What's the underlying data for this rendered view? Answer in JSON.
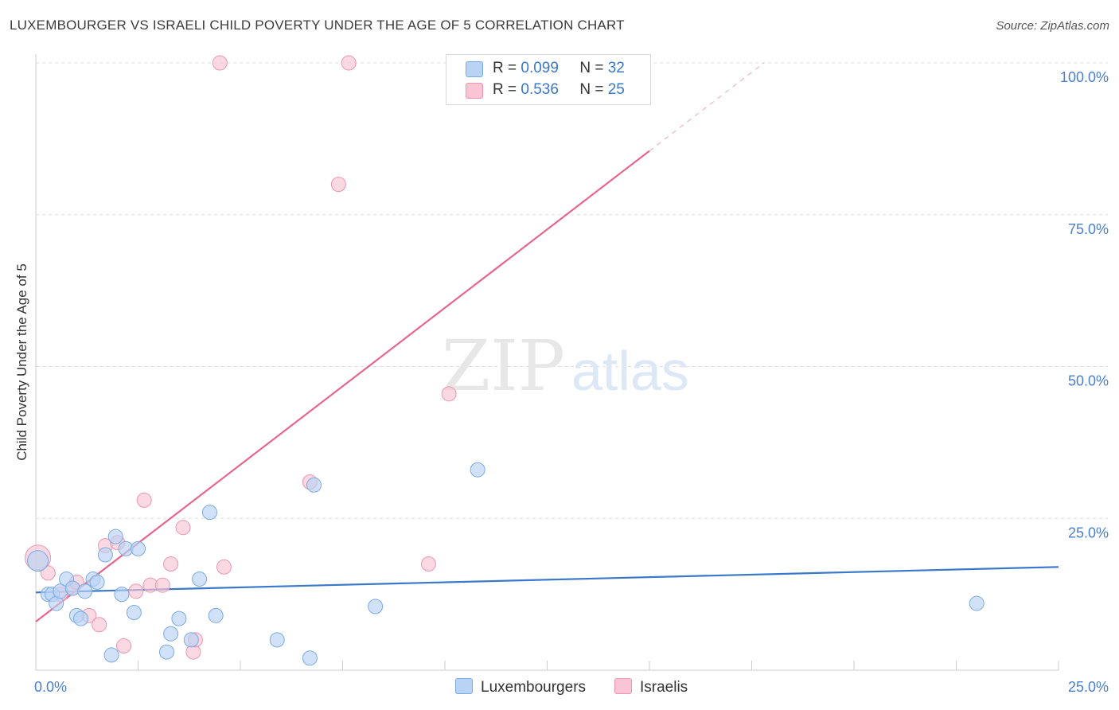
{
  "title": "LUXEMBOURGER VS ISRAELI CHILD POVERTY UNDER THE AGE OF 5 CORRELATION CHART",
  "source": "Source: ZipAtlas.com",
  "watermark": {
    "zip": "ZIP",
    "atlas": "atlas"
  },
  "legend": {
    "r_label": "R =",
    "n_label": "N =",
    "series": [
      {
        "name": "Luxembourgers",
        "r": "0.099",
        "n": "32",
        "fill": "#b8d3f4",
        "stroke": "#7aaae6"
      },
      {
        "name": "Israelis",
        "r": "0.536",
        "n": "25",
        "fill": "#f9c4d4",
        "stroke": "#ee96b2"
      }
    ]
  },
  "colors": {
    "blue_line": "#3a78c9",
    "pink_line": "#e5678d",
    "axis_text": "#4a7fcf",
    "grid": "#dddddd"
  },
  "chart_data": {
    "type": "scatter",
    "title": "LUXEMBOURGER VS ISRAELI CHILD POVERTY UNDER THE AGE OF 5 CORRELATION CHART",
    "xlabel": "",
    "ylabel": "Child Poverty Under the Age of 5",
    "xlim": [
      0,
      25
    ],
    "ylim": [
      0,
      100
    ],
    "x_tick_labels": [
      {
        "value": 0,
        "label": "0.0%"
      },
      {
        "value": 25,
        "label": "25.0%"
      }
    ],
    "y_tick_labels": [
      {
        "value": 100,
        "label": "100.0%"
      },
      {
        "value": 75,
        "label": "75.0%"
      },
      {
        "value": 50,
        "label": "50.0%"
      },
      {
        "value": 25,
        "label": "25.0%"
      }
    ],
    "series": [
      {
        "name": "Luxembourgers",
        "points": [
          [
            0.05,
            18.0,
            13
          ],
          [
            0.3,
            12.5,
            9
          ],
          [
            0.4,
            12.5,
            9
          ],
          [
            0.5,
            11.0,
            9
          ],
          [
            0.6,
            13.0,
            9
          ],
          [
            0.75,
            15.0,
            9
          ],
          [
            0.9,
            13.5,
            9
          ],
          [
            1.0,
            9.0,
            9
          ],
          [
            1.1,
            8.5,
            9
          ],
          [
            1.2,
            13.0,
            9
          ],
          [
            1.4,
            15.0,
            9
          ],
          [
            1.5,
            14.5,
            9
          ],
          [
            1.7,
            19.0,
            9
          ],
          [
            1.85,
            2.5,
            9
          ],
          [
            1.95,
            22.0,
            9
          ],
          [
            2.1,
            12.5,
            9
          ],
          [
            2.2,
            20.0,
            9
          ],
          [
            2.4,
            9.5,
            9
          ],
          [
            2.5,
            20.0,
            9
          ],
          [
            3.2,
            3.0,
            9
          ],
          [
            3.3,
            6.0,
            9
          ],
          [
            3.5,
            8.5,
            9
          ],
          [
            3.8,
            5.0,
            9
          ],
          [
            4.0,
            15.0,
            9
          ],
          [
            4.25,
            26.0,
            9
          ],
          [
            4.4,
            9.0,
            9
          ],
          [
            5.9,
            5.0,
            9
          ],
          [
            6.7,
            2.0,
            9
          ],
          [
            6.8,
            30.5,
            9
          ],
          [
            8.3,
            10.5,
            9
          ],
          [
            10.8,
            33.0,
            9
          ],
          [
            23.0,
            11.0,
            9
          ]
        ]
      },
      {
        "name": "Israelis",
        "points": [
          [
            0.05,
            18.5,
            16
          ],
          [
            0.3,
            16.0,
            9
          ],
          [
            0.6,
            12.5,
            9
          ],
          [
            0.9,
            13.5,
            9
          ],
          [
            1.0,
            14.5,
            9
          ],
          [
            1.3,
            9.0,
            9
          ],
          [
            1.55,
            7.5,
            9
          ],
          [
            1.7,
            20.5,
            9
          ],
          [
            2.0,
            21.0,
            9
          ],
          [
            2.15,
            4.0,
            9
          ],
          [
            2.45,
            13.0,
            9
          ],
          [
            2.65,
            28.0,
            9
          ],
          [
            2.8,
            14.0,
            9
          ],
          [
            3.1,
            14.0,
            9
          ],
          [
            3.3,
            17.5,
            9
          ],
          [
            3.6,
            23.5,
            9
          ],
          [
            3.85,
            3.0,
            9
          ],
          [
            3.9,
            5.0,
            9
          ],
          [
            4.6,
            17.0,
            9
          ],
          [
            4.5,
            100.0,
            9
          ],
          [
            6.7,
            31.0,
            9
          ],
          [
            7.4,
            80.0,
            9
          ],
          [
            7.65,
            100.0,
            9
          ],
          [
            9.6,
            17.5,
            9
          ],
          [
            10.1,
            45.5,
            9
          ]
        ]
      }
    ],
    "trendlines": [
      {
        "series": "Luxembourgers",
        "x": [
          0,
          25
        ],
        "y": [
          12.8,
          17.0
        ],
        "style": "solid"
      },
      {
        "series": "Israelis",
        "x": [
          0,
          15
        ],
        "y": [
          8.0,
          85.5
        ],
        "style": "solid"
      },
      {
        "series": "Israelis",
        "x": [
          15,
          17.8
        ],
        "y": [
          85.5,
          100.0
        ],
        "style": "dashed"
      }
    ]
  }
}
